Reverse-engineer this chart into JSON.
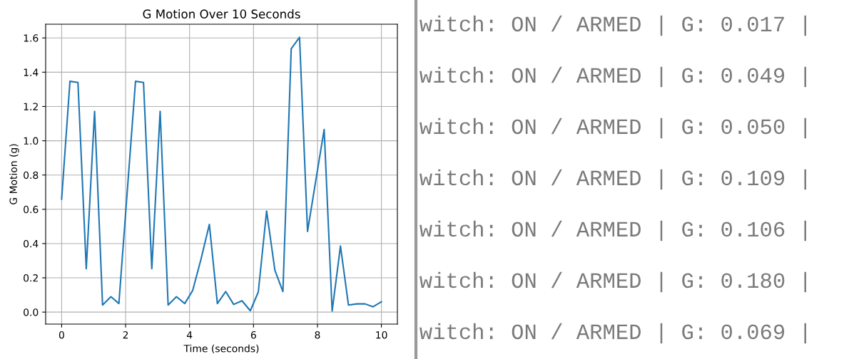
{
  "chart_data": [
    {
      "type": "line",
      "title": "G Motion Over 10 Seconds",
      "xlabel": "Time (seconds)",
      "ylabel": "G Motion (g)",
      "x": [
        0,
        0.26,
        0.51,
        0.77,
        1.03,
        1.28,
        1.54,
        1.79,
        2.05,
        2.31,
        2.56,
        2.82,
        3.08,
        3.33,
        3.59,
        3.85,
        4.1,
        4.36,
        4.62,
        4.87,
        5.13,
        5.38,
        5.64,
        5.9,
        6.15,
        6.41,
        6.67,
        6.92,
        7.18,
        7.44,
        7.69,
        7.95,
        8.21,
        8.46,
        8.72,
        8.97,
        9.23,
        9.49,
        9.74,
        10
      ],
      "series": [
        {
          "color": "#1f77b4",
          "values": [
            0.659,
            1.347,
            1.34,
            0.253,
            1.172,
            0.041,
            0.09,
            0.05,
            0.7,
            1.347,
            1.34,
            0.253,
            1.172,
            0.041,
            0.09,
            0.05,
            0.127,
            0.31,
            0.512,
            0.05,
            0.12,
            0.045,
            0.066,
            0.008,
            0.117,
            0.59,
            0.243,
            0.12,
            1.537,
            1.604,
            0.471,
            0.77,
            1.066,
            0.006,
            0.386,
            0.041,
            0.048,
            0.048,
            0.031,
            0.06
          ]
        }
      ],
      "xlim": [
        -0.5,
        10.5
      ],
      "xticks": [
        0,
        2,
        4,
        6,
        8,
        10
      ],
      "ylim": [
        -0.07,
        1.68
      ],
      "yticks": [
        {
          "value": 0,
          "label": "0.0"
        },
        0.2,
        0.4,
        0.6,
        0.8,
        {
          "value": 1,
          "label": "1.0"
        },
        1.2,
        1.4,
        1.6
      ],
      "grid": true,
      "marker": "none",
      "line_style": "solid"
    },
    {
      "type": "other",
      "annotations": [
        "witch: ON / ARMED | G: 0.017 |",
        "witch: ON / ARMED | G: 0.049 |",
        "witch: ON / ARMED | G: 0.050 |",
        "witch: ON / ARMED | G: 0.109 |",
        "witch: ON / ARMED | G: 0.106 |",
        "witch: ON / ARMED | G: 0.180 |",
        "witch: ON / ARMED | G: 0.069 |"
      ]
    }
  ]
}
